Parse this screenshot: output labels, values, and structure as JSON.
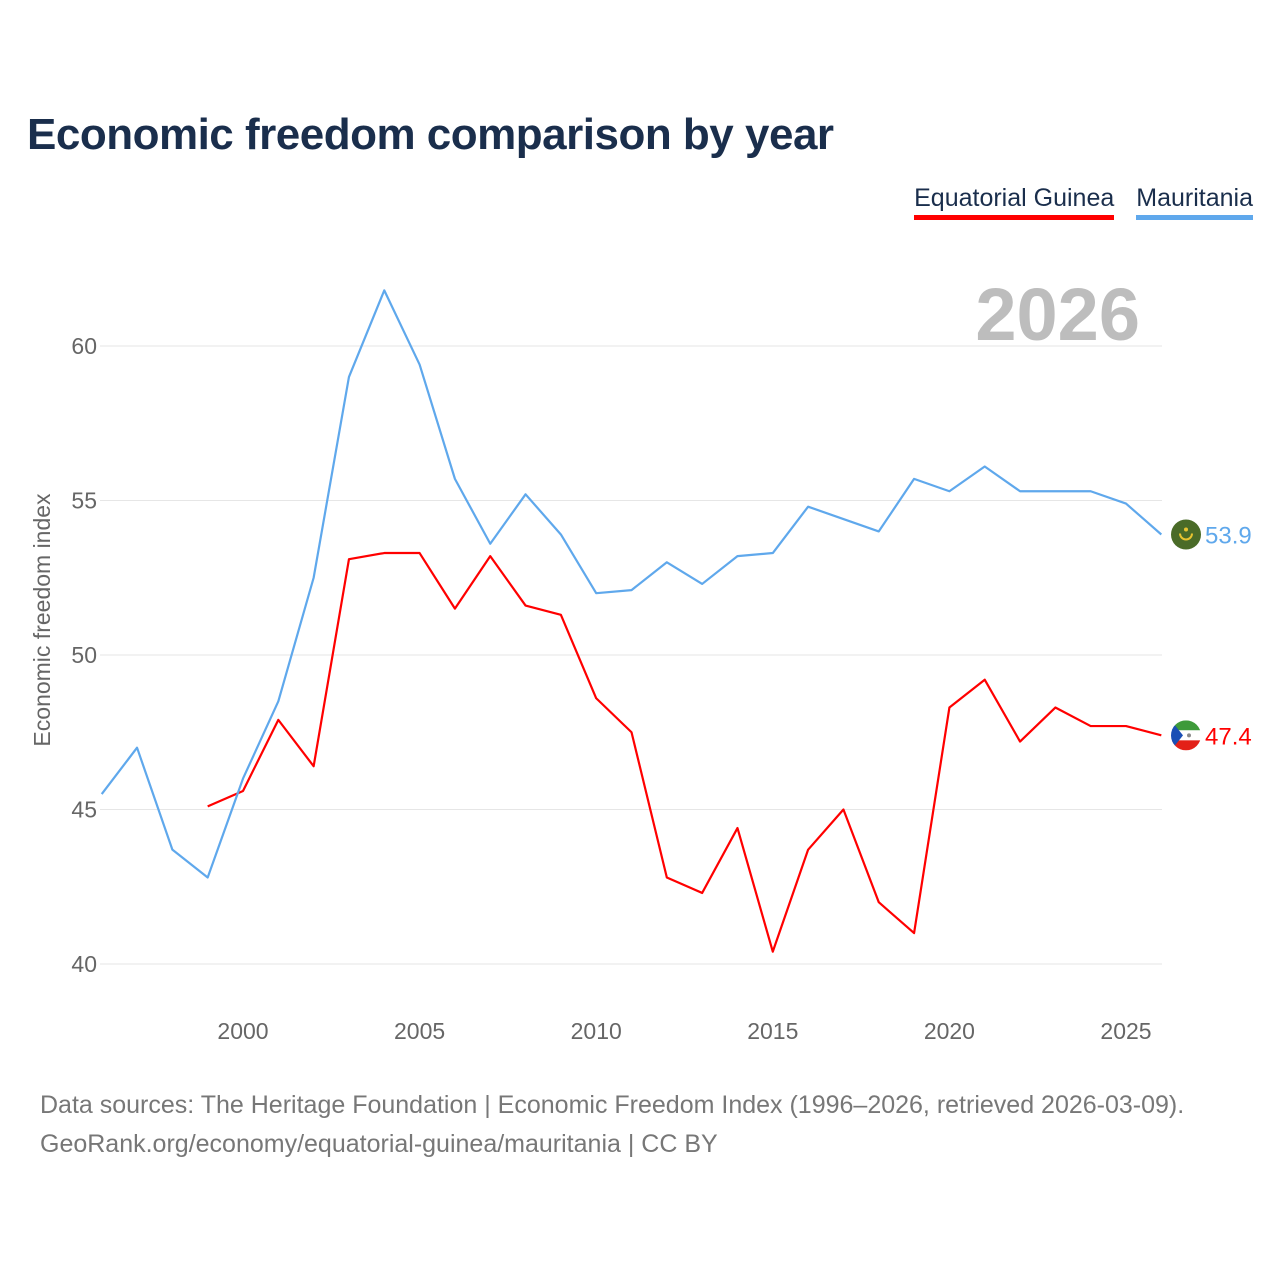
{
  "title": "Economic freedom comparison by year",
  "footer": {
    "line1": "Data sources: The Heritage Foundation | Economic Freedom Index (1996–2026, retrieved 2026-03-09).",
    "line2": "GeoRank.org/economy/equatorial-guinea/mauritania | CC BY"
  },
  "chart_data": {
    "type": "line",
    "title": "Economic freedom comparison by year",
    "xlabel": "",
    "ylabel": "Economic freedom index",
    "year_label": "2026",
    "xlim": [
      1996,
      2026
    ],
    "ylim": [
      40,
      62
    ],
    "yticks": [
      "40",
      "45",
      "50",
      "55",
      "60"
    ],
    "xticks": [
      "2000",
      "2005",
      "2010",
      "2015",
      "2020",
      "2025"
    ],
    "grid": true,
    "legend": "top-right",
    "series": [
      {
        "name": "Equatorial Guinea",
        "color": "#ff0000",
        "end_label": "47.4",
        "flag_icon": "equatorial-guinea-flag-icon",
        "x": [
          1999,
          2000,
          2001,
          2002,
          2003,
          2004,
          2005,
          2006,
          2007,
          2008,
          2009,
          2010,
          2011,
          2012,
          2013,
          2014,
          2015,
          2016,
          2017,
          2018,
          2019,
          2020,
          2021,
          2022,
          2023,
          2024,
          2025,
          2026
        ],
        "values": [
          45.1,
          45.6,
          47.9,
          46.4,
          53.1,
          53.3,
          53.3,
          51.5,
          53.2,
          51.6,
          51.3,
          48.6,
          47.5,
          42.8,
          42.3,
          44.4,
          40.4,
          43.7,
          45.0,
          42.0,
          41.0,
          48.3,
          49.2,
          47.2,
          48.3,
          47.7,
          47.7,
          47.4
        ]
      },
      {
        "name": "Mauritania",
        "color": "#5fa8ec",
        "end_label": "53.9",
        "flag_icon": "mauritania-flag-icon",
        "x": [
          1996,
          1997,
          1998,
          1999,
          2000,
          2001,
          2002,
          2003,
          2004,
          2005,
          2006,
          2007,
          2008,
          2009,
          2010,
          2011,
          2012,
          2013,
          2014,
          2015,
          2016,
          2017,
          2018,
          2019,
          2020,
          2021,
          2022,
          2023,
          2024,
          2025,
          2026
        ],
        "values": [
          45.5,
          47.0,
          43.7,
          42.8,
          46.0,
          48.5,
          52.5,
          59.0,
          61.8,
          59.4,
          55.7,
          53.6,
          55.2,
          53.9,
          52.0,
          52.1,
          53.0,
          52.3,
          53.2,
          53.3,
          54.8,
          54.4,
          54.0,
          55.7,
          55.3,
          56.1,
          55.3,
          55.3,
          55.3,
          54.9,
          53.9
        ]
      }
    ]
  }
}
